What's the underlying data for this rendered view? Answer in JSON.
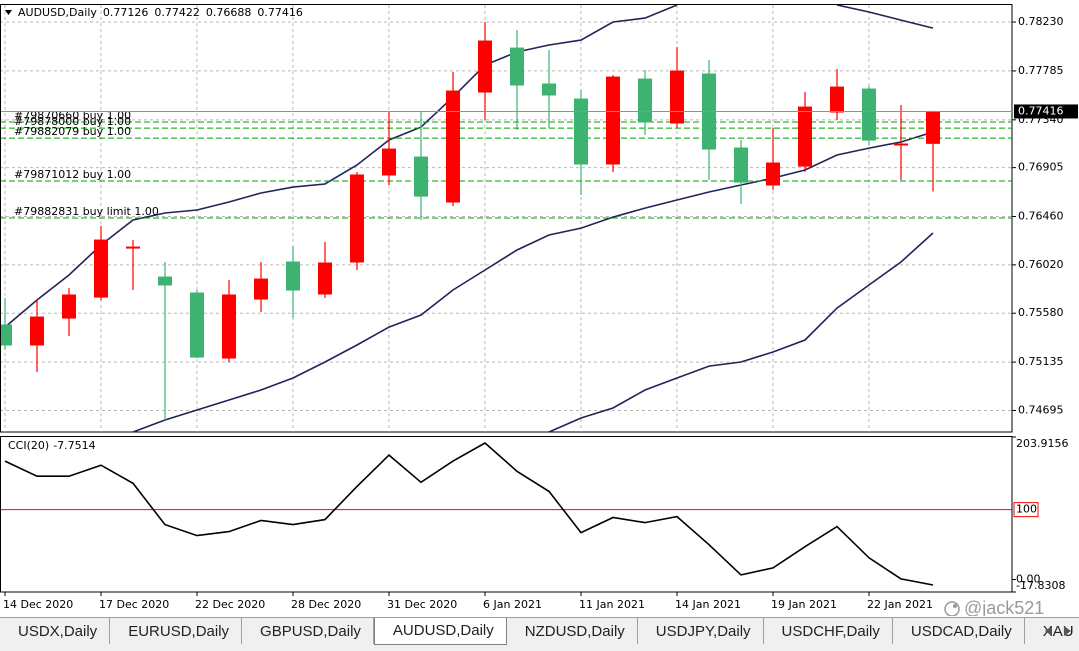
{
  "chart_data": [
    {
      "type": "candlestick",
      "title": "AUDUSD,Daily",
      "categories": [
        "14 Dec 2020",
        null,
        null,
        "17 Dec 2020",
        null,
        null,
        "22 Dec 2020",
        null,
        null,
        "28 Dec 2020",
        null,
        null,
        "31 Dec 2020",
        null,
        null,
        "6 Jan 2021",
        null,
        null,
        "11 Jan 2021",
        null,
        null,
        "14 Jan 2021",
        null,
        null,
        "19 Jan 2021",
        null,
        null,
        "22 Jan 2021",
        null,
        null
      ],
      "open": [
        0.75473,
        0.75291,
        0.75536,
        0.75727,
        0.76173,
        0.75909,
        0.75764,
        0.75172,
        0.75709,
        0.76046,
        0.75755,
        0.76046,
        0.76838,
        0.77001,
        0.76592,
        0.77593,
        0.77993,
        0.77666,
        0.77529,
        0.76938,
        0.77711,
        0.77311,
        0.77757,
        0.77083,
        0.76747,
        0.76919,
        0.77411,
        0.7762,
        0.77111,
        0.77126
      ],
      "high": [
        0.75718,
        0.757,
        0.75809,
        0.76373,
        0.76246,
        0.76046,
        0.75791,
        0.75882,
        0.76046,
        0.76191,
        0.76228,
        0.76865,
        0.77411,
        0.77411,
        0.77775,
        0.7823,
        0.78157,
        0.77975,
        0.77611,
        0.77748,
        0.77793,
        0.78002,
        0.77884,
        0.77156,
        0.77265,
        0.77593,
        0.77802,
        0.77647,
        0.77475,
        0.77422
      ],
      "low": [
        0.75245,
        0.75045,
        0.75372,
        0.757,
        0.75791,
        0.74608,
        0.75172,
        0.75136,
        0.75591,
        0.75536,
        0.75718,
        0.75973,
        0.76747,
        0.76428,
        0.76555,
        0.77338,
        0.77247,
        0.77265,
        0.76656,
        0.76865,
        0.77202,
        0.77265,
        0.76792,
        0.76574,
        0.76701,
        0.76865,
        0.77338,
        0.77111,
        0.76792,
        0.76688
      ],
      "close": [
        0.75291,
        0.75545,
        0.75746,
        0.76246,
        0.76182,
        0.75837,
        0.75181,
        0.75746,
        0.75891,
        0.75791,
        0.76037,
        0.76838,
        0.77074,
        0.76646,
        0.77602,
        0.78057,
        0.77657,
        0.77566,
        0.76938,
        0.77729,
        0.7732,
        0.77784,
        0.77074,
        0.76774,
        0.76947,
        0.77456,
        0.77638,
        0.77156,
        0.7712,
        0.77416
      ],
      "up_color": "#ff0000",
      "down_color": "#3cb371",
      "ylim": [
        0.74499,
        0.78385
      ],
      "yticks": [
        {
          "value": 0.7823,
          "label": "0.78230"
        },
        0.77785,
        {
          "value": 0.7734,
          "label": "0.77340"
        },
        0.76905,
        {
          "value": 0.7646,
          "label": "0.76460"
        },
        {
          "value": 0.7602,
          "label": "0.76020"
        },
        {
          "value": 0.7558,
          "label": "0.75580"
        },
        0.75135,
        0.74695
      ],
      "grid": true,
      "bands": [
        {
          "color": "#23235a",
          "values": [
            0.75454,
            0.757,
            0.75928,
            0.76201,
            0.76428,
            0.76492,
            0.76519,
            0.76592,
            0.76674,
            0.76728,
            0.76756,
            0.76929,
            0.77156,
            0.77274,
            0.77547,
            0.77839,
            0.77957,
            0.78021,
            0.78066,
            0.7823,
            0.78266,
            0.78385,
            null,
            null,
            null,
            null,
            0.78385,
            0.78321,
            0.78248,
            0.78175
          ]
        },
        {
          "color": "#23235a",
          "values": [
            null,
            null,
            null,
            null,
            0.74499,
            0.74608,
            0.74699,
            0.7479,
            0.74881,
            0.7499,
            0.75136,
            0.75291,
            0.75454,
            0.75564,
            0.75791,
            0.75973,
            0.76155,
            0.76292,
            0.76355,
            0.76455,
            0.76537,
            0.7661,
            0.76683,
            0.76747,
            0.7681,
            0.76883,
            0.7702,
            0.77083,
            0.77138,
            0.77229
          ]
        },
        {
          "color": "#23235a",
          "values": [
            null,
            null,
            null,
            null,
            null,
            null,
            null,
            null,
            null,
            null,
            null,
            null,
            null,
            null,
            null,
            null,
            null,
            0.74499,
            0.74626,
            0.74717,
            0.74881,
            0.7499,
            0.75099,
            0.75136,
            0.75227,
            0.75336,
            0.75627,
            0.75837,
            0.76046,
            0.7631
          ]
        }
      ],
      "orders": [
        {
          "label": "#79870660 buy 1.00",
          "value": 0.7732
        },
        {
          "label": "#79878000 buy 1.00",
          "value": 0.77265
        },
        {
          "label": "#79882079 buy 1.00",
          "value": 0.77174
        },
        {
          "label": "#79871012 buy 1.00",
          "value": 0.76783
        },
        {
          "label": "#79882831 buy limit 1.00",
          "value": 0.76446
        }
      ],
      "order_color": "#00a000",
      "last_price_color": "#000000"
    },
    {
      "type": "line",
      "title": "CCI(20)",
      "values": [
        169.4,
        147.8,
        147.8,
        163.6,
        137.7,
        78.6,
        62.8,
        68.6,
        84.4,
        78.6,
        85.8,
        133.3,
        178.0,
        139.1,
        169.4,
        195.3,
        154.9,
        126.1,
        67.1,
        88.7,
        81.5,
        90.1,
        49.8,
        6.6,
        16.7,
        47.0,
        75.7,
        31.1,
        0.9,
        -7.7514
      ],
      "color": "#000000",
      "ylim": [
        -17.8308,
        203.9156
      ],
      "yticks": [
        203.9156,
        {
          "value": 0,
          "label": "0.00"
        },
        -17.8308
      ],
      "levels": [
        100
      ],
      "level_color": "#ff0000"
    }
  ],
  "tabs": [
    "USDX,Daily",
    "EURUSD,Daily",
    "GBPUSD,Daily",
    "AUDUSD,Daily",
    "NZDUSD,Daily",
    "USDJPY,Daily",
    "USDCHF,Daily",
    "USDCAD,Daily",
    "XAU"
  ],
  "active_tab": 3,
  "watermark": "@jack521"
}
